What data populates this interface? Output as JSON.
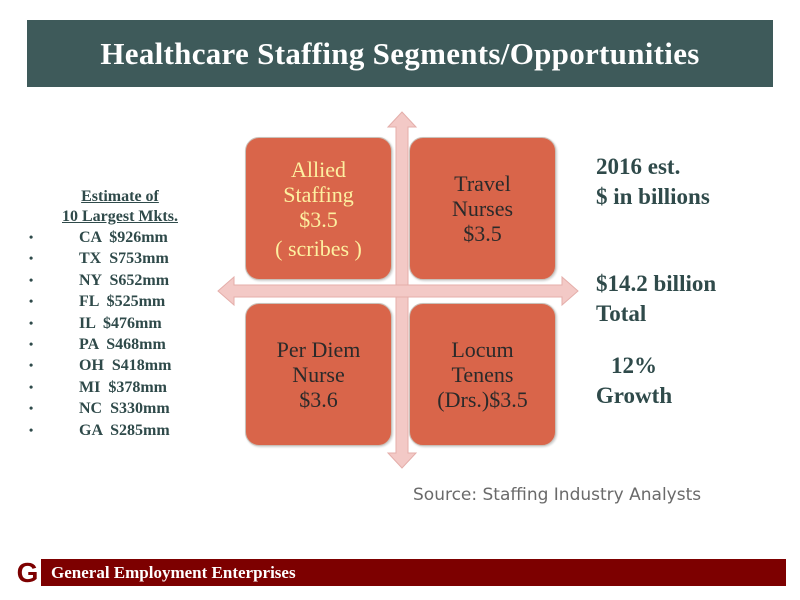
{
  "title": "Healthcare Staffing Segments/Opportunities",
  "markets": {
    "heading_line1": "Estimate of",
    "heading_line2": "10 Largest Mkts.",
    "items": [
      {
        "state": "CA",
        "value": "$926mm"
      },
      {
        "state": "TX",
        "value": "S753mm"
      },
      {
        "state": "NY",
        "value": "S652mm"
      },
      {
        "state": "FL",
        "value": "$525mm"
      },
      {
        "state": "IL",
        "value": "$476mm"
      },
      {
        "state": "PA",
        "value": "S468mm"
      },
      {
        "state": "OH",
        "value": "S418mm"
      },
      {
        "state": "MI",
        "value": "$378mm"
      },
      {
        "state": "NC",
        "value": "S330mm"
      },
      {
        "state": "GA",
        "value": "S285mm"
      }
    ]
  },
  "quadrants": {
    "allied": {
      "l1": "Allied",
      "l2": "Staffing",
      "l3": "$3.5",
      "l4": "( scribes )"
    },
    "travel": {
      "l1": "Travel",
      "l2": "Nurses",
      "l3": "$3.5"
    },
    "perdiem": {
      "l1": "Per Diem",
      "l2": "Nurse",
      "l3": "$3.6"
    },
    "locum": {
      "l1": "Locum",
      "l2": "Tenens",
      "l3": "(Drs.)$3.5"
    }
  },
  "side": {
    "est_l1": "2016 est.",
    "est_l2": "$ in billions",
    "total_l1": "$14.2 billion",
    "total_l2": "Total",
    "growth_l1": "12%",
    "growth_l2": "Growth"
  },
  "source": "Source: Staffing Industry Analysts",
  "footer": {
    "logo": "G",
    "company": "General Employment  Enterprises"
  },
  "colors": {
    "title_bar": "#3e5a5a",
    "quadrant": "#d9654a",
    "arrow": "#f3c9c6",
    "footer": "#7d0000"
  }
}
